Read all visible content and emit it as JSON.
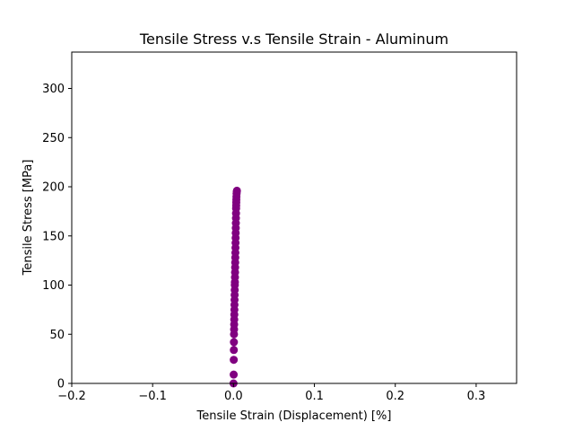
{
  "chart_data": {
    "type": "scatter",
    "title": "Tensile Stress v.s Tensile Strain - Aluminum",
    "xlabel": "Tensile Strain (Displacement) [%]",
    "ylabel": "Tensile Stress [MPa]",
    "xlim": [
      -0.2,
      0.35
    ],
    "ylim": [
      0,
      337
    ],
    "x_ticks": [
      -0.2,
      -0.1,
      0.0,
      0.1,
      0.2,
      0.3
    ],
    "x_tick_labels": [
      "−0.2",
      "−0.1",
      "0.0",
      "0.1",
      "0.2",
      "0.3"
    ],
    "y_ticks": [
      0,
      50,
      100,
      150,
      200,
      250,
      300
    ],
    "y_tick_labels": [
      "0",
      "50",
      "100",
      "150",
      "200",
      "250",
      "300"
    ],
    "grid": false,
    "marker_color": "#800080",
    "series": [
      {
        "x": [
          0.0,
          0.0002,
          0.0003,
          0.0004,
          0.0005,
          0.0006,
          0.0007,
          0.0008,
          0.0009,
          0.001,
          0.0011,
          0.0012,
          0.0013,
          0.0014,
          0.0015,
          0.0016,
          0.0017,
          0.0018,
          0.0019,
          0.002,
          0.0021,
          0.0022,
          0.0023,
          0.0024,
          0.0025,
          0.0026,
          0.0027,
          0.0028,
          0.0029,
          0.003,
          0.0031,
          0.0032,
          0.0033,
          0.0034,
          0.0035,
          0.0036,
          0.0038,
          0.004,
          0.0042
        ],
        "y": [
          0,
          9,
          24,
          34,
          42,
          50,
          55,
          60,
          65,
          70,
          75,
          80,
          85,
          90,
          95,
          100,
          103,
          108,
          113,
          118,
          123,
          128,
          133,
          138,
          143,
          148,
          153,
          158,
          163,
          168,
          173,
          178,
          181,
          184,
          187,
          190,
          193,
          195,
          196
        ]
      }
    ]
  }
}
